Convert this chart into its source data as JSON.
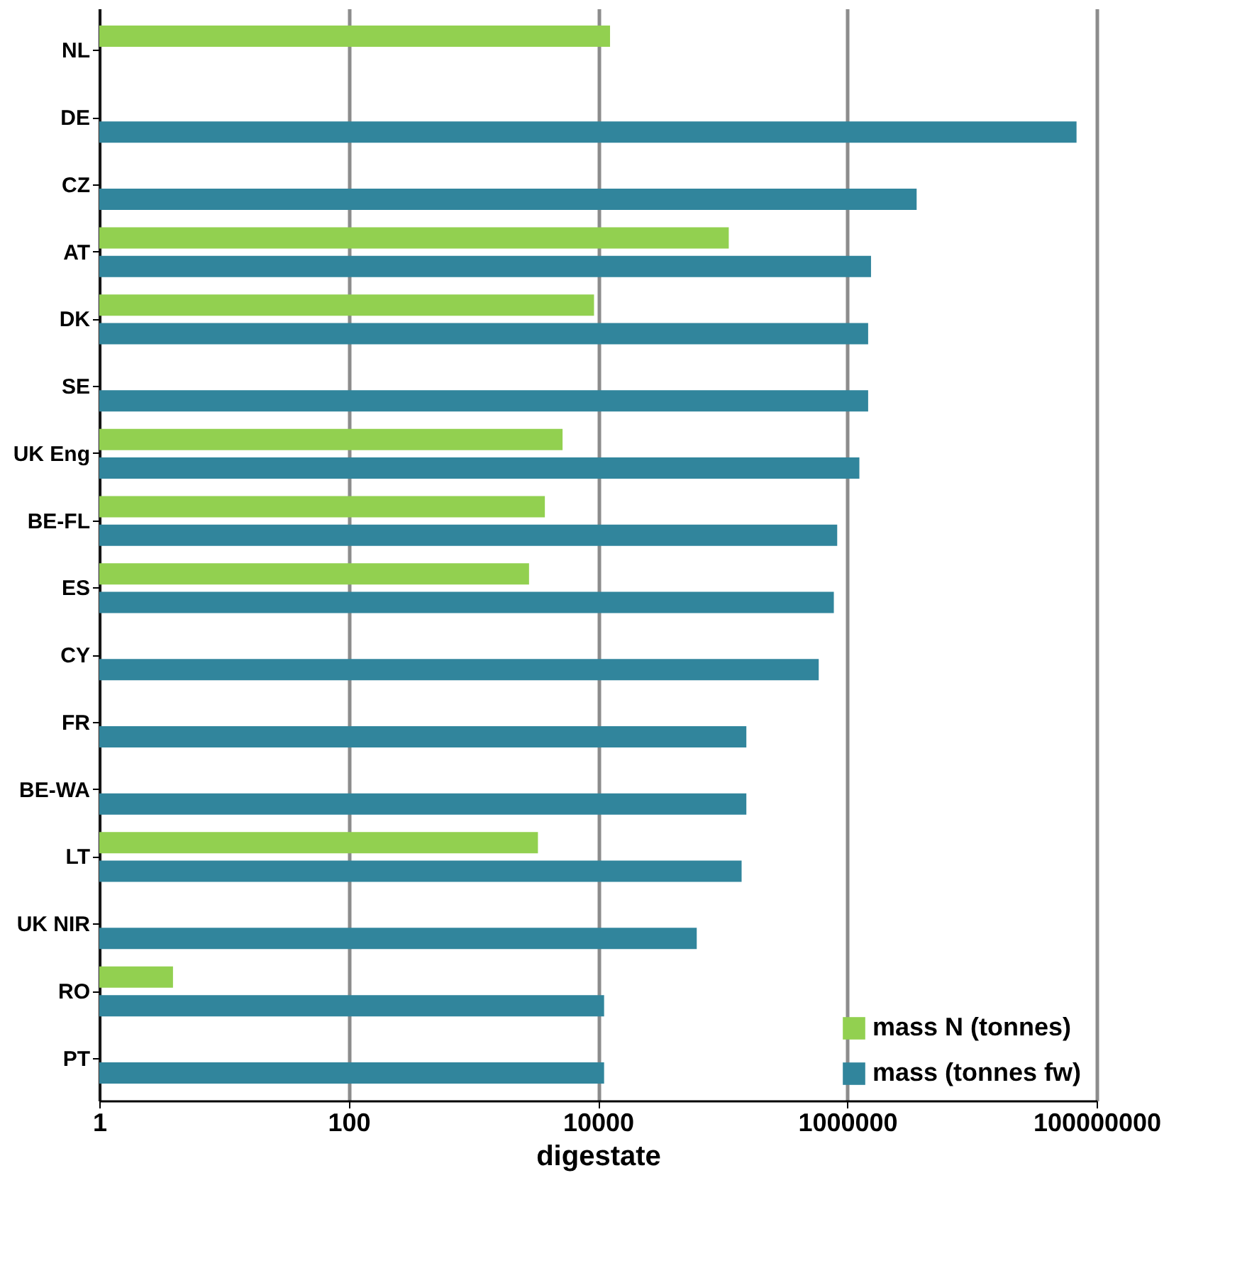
{
  "chart_data": {
    "type": "bar",
    "orientation": "horizontal",
    "xlabel": "digestate",
    "categories": [
      "NL",
      "DE",
      "CZ",
      "AT",
      "DK",
      "SE",
      "UK Eng",
      "BE-FL",
      "ES",
      "CY",
      "FR",
      "BE-WA",
      "LT",
      "UK NIR",
      "RO",
      "PT"
    ],
    "series": [
      {
        "name": "mass N (tonnes)",
        "color": "#92d050",
        "values": [
          12500,
          null,
          null,
          112000,
          9300,
          null,
          5200,
          3750,
          2800,
          null,
          null,
          null,
          3300,
          null,
          3.9,
          null
        ]
      },
      {
        "name": "mass (tonnes fw)",
        "color": "#31859c",
        "values": [
          null,
          69000000,
          3600000,
          1550000,
          1470000,
          1470000,
          1250000,
          830000,
          780000,
          590000,
          155000,
          155000,
          142000,
          62000,
          11200,
          11200
        ]
      }
    ],
    "log": "x",
    "xlim": [
      1,
      100000000
    ],
    "xticks": [
      1,
      100,
      10000,
      1000000,
      100000000
    ],
    "grid": "x",
    "legend": "bottom right"
  }
}
